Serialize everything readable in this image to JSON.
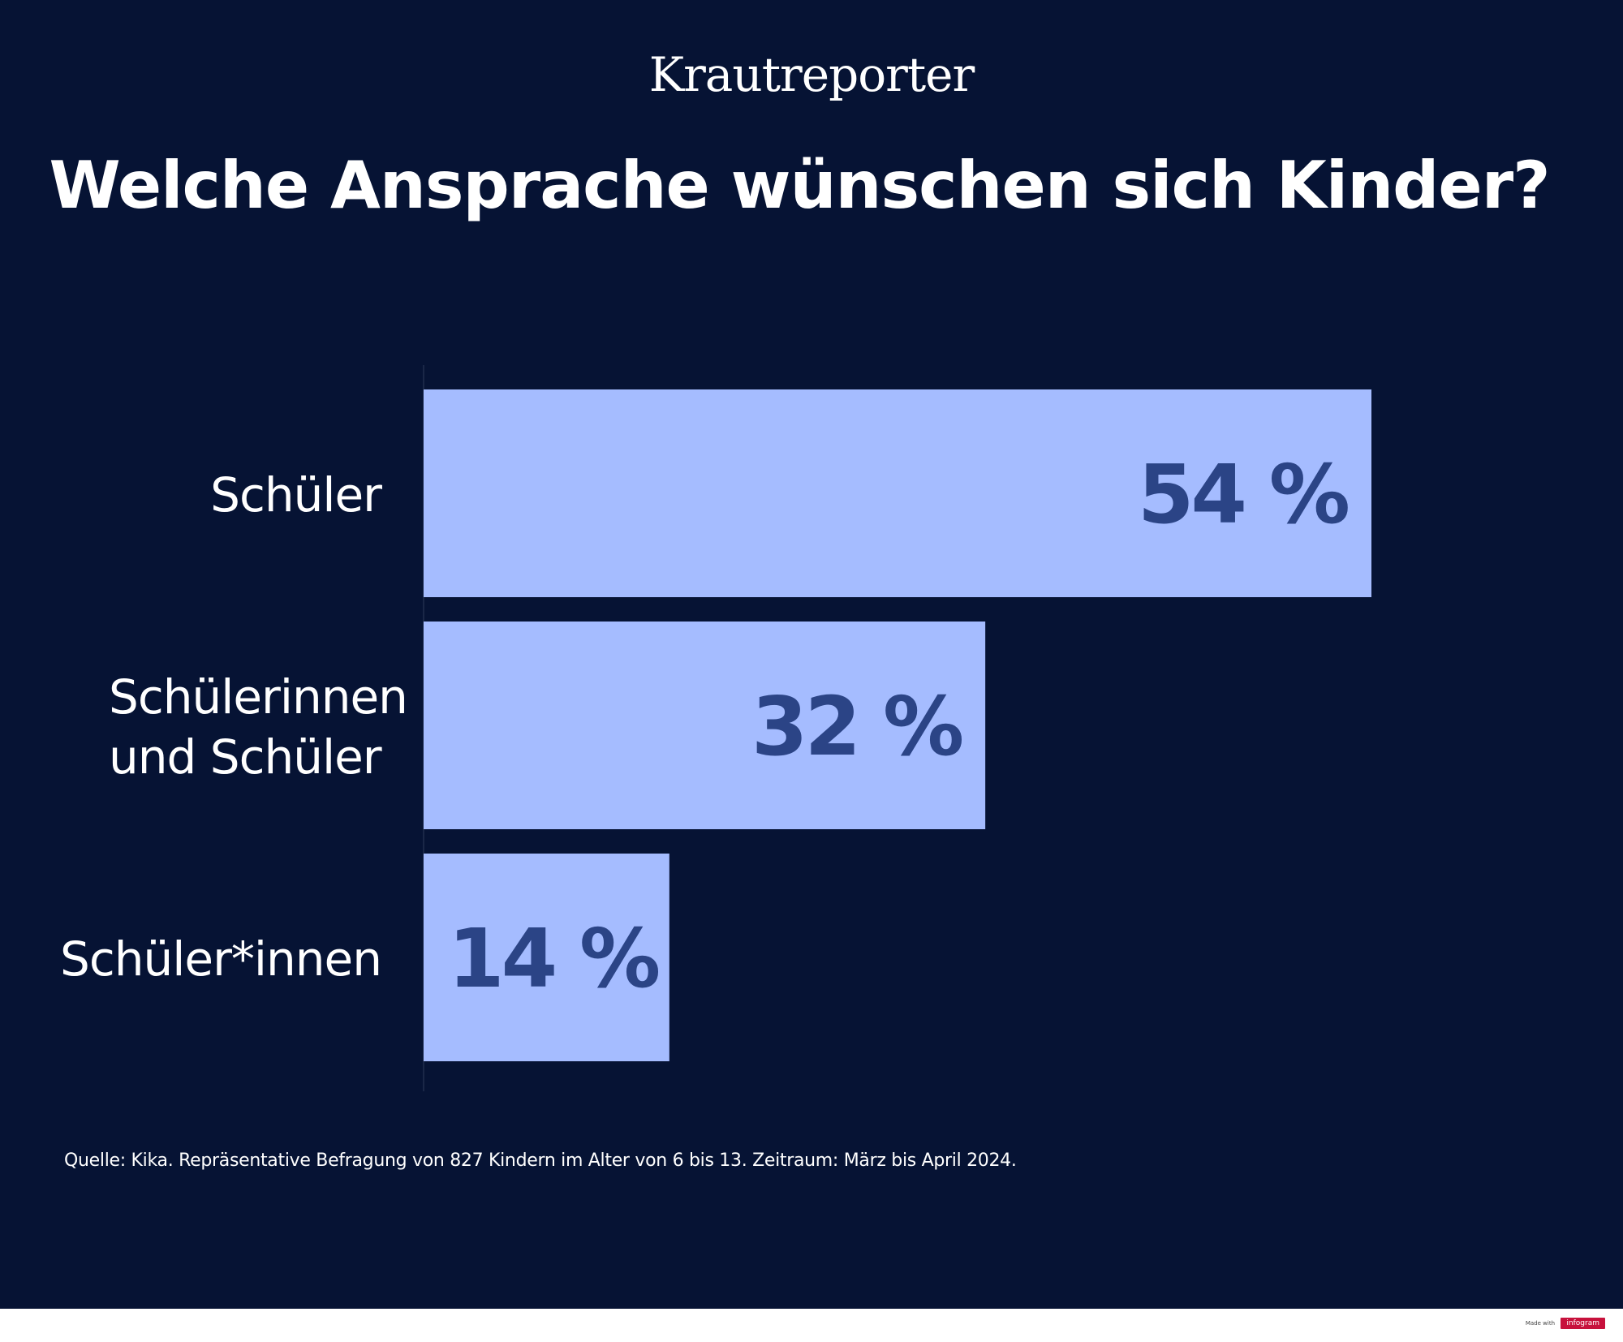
{
  "brand": {
    "logo_text": "Krautreporter"
  },
  "chart_data": {
    "type": "bar",
    "orientation": "horizontal",
    "title": "Welche Ansprache wünschen sich Kinder?",
    "categories": [
      [
        "Schüler"
      ],
      [
        "Schülerinnen",
        "und Schüler"
      ],
      [
        "Schüler*innen"
      ]
    ],
    "values": [
      54,
      32,
      14
    ],
    "value_labels": [
      "54 %",
      "32 %",
      "14 %"
    ],
    "xlim": [
      0,
      54
    ],
    "grid": false,
    "colors": {
      "bar": "#a5bcff",
      "value_label": "#2b4486",
      "background": "#061334",
      "text": "#ffffff"
    }
  },
  "source": "Quelle: Kika. Repräsentative Befragung von 827 Kindern im Alter von 6 bis 13. Zeitraum: März bis April 2024.",
  "footer": {
    "made_with": "Made with",
    "badge": "infogram"
  }
}
